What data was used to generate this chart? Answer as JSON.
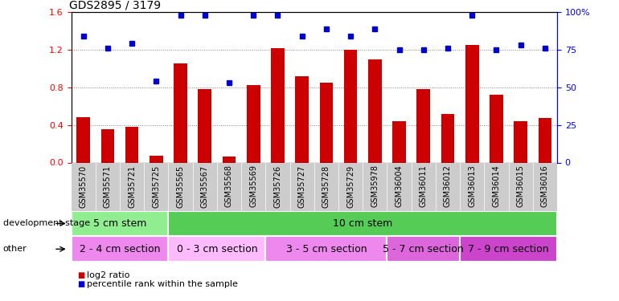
{
  "title": "GDS2895 / 3179",
  "samples": [
    "GSM35570",
    "GSM35571",
    "GSM35721",
    "GSM35725",
    "GSM35565",
    "GSM35567",
    "GSM35568",
    "GSM35569",
    "GSM35726",
    "GSM35727",
    "GSM35728",
    "GSM35729",
    "GSM35978",
    "GSM36004",
    "GSM36011",
    "GSM36012",
    "GSM36013",
    "GSM36014",
    "GSM36015",
    "GSM36016"
  ],
  "log2_ratio": [
    0.48,
    0.35,
    0.38,
    0.07,
    1.05,
    0.78,
    0.06,
    0.82,
    1.22,
    0.92,
    0.85,
    1.2,
    1.1,
    0.44,
    0.78,
    0.52,
    1.25,
    0.72,
    0.44,
    0.47
  ],
  "percentile": [
    84,
    76,
    79,
    54,
    98,
    98,
    53,
    98,
    98,
    84,
    89,
    84,
    89,
    75,
    75,
    76,
    98,
    75,
    78,
    76
  ],
  "ylim_left": [
    0,
    1.6
  ],
  "ylim_right": [
    0,
    100
  ],
  "yticks_left": [
    0,
    0.4,
    0.8,
    1.2,
    1.6
  ],
  "yticks_right": [
    0,
    25,
    50,
    75,
    100
  ],
  "bar_color": "#cc0000",
  "dot_color": "#0000cc",
  "dev_stage_groups": [
    {
      "label": "5 cm stem",
      "start": 0,
      "end": 4,
      "color": "#90ee90"
    },
    {
      "label": "10 cm stem",
      "start": 4,
      "end": 20,
      "color": "#55cc55"
    }
  ],
  "other_groups": [
    {
      "label": "2 - 4 cm section",
      "start": 0,
      "end": 4,
      "color": "#ee88ee"
    },
    {
      "label": "0 - 3 cm section",
      "start": 4,
      "end": 8,
      "color": "#ffbbff"
    },
    {
      "label": "3 - 5 cm section",
      "start": 8,
      "end": 13,
      "color": "#ee88ee"
    },
    {
      "label": "5 - 7 cm section",
      "start": 13,
      "end": 16,
      "color": "#dd66dd"
    },
    {
      "label": "7 - 9 cm section",
      "start": 16,
      "end": 20,
      "color": "#cc44cc"
    }
  ],
  "xtick_bg_color": "#cccccc",
  "label_fontsize": 7
}
